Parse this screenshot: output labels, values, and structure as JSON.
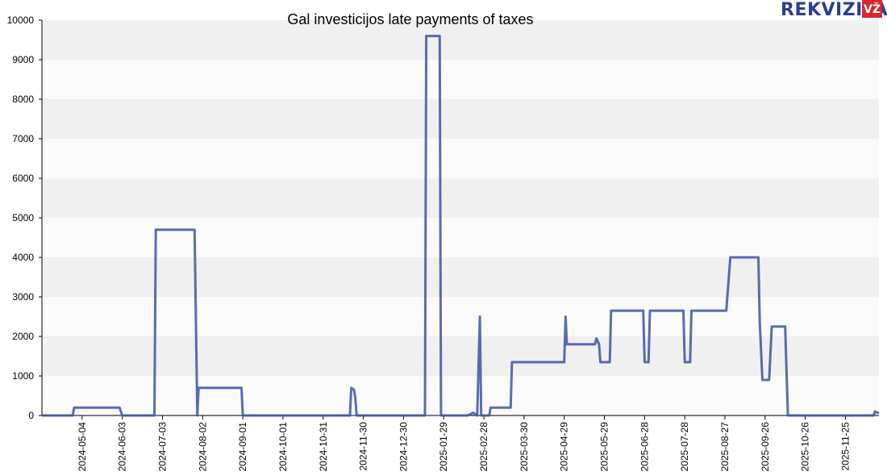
{
  "logo": {
    "word": "REKVIZITAI",
    "badge": "VŽ",
    "badge_color": "#d9262c",
    "word_color": "#2b3f8f"
  },
  "chart_data": {
    "type": "line",
    "title": "Gal investicijos late payments of taxes",
    "xlabel": "",
    "ylabel": "",
    "ylim": [
      0,
      10000
    ],
    "yticks": [
      0,
      1000,
      2000,
      3000,
      4000,
      5000,
      6000,
      7000,
      8000,
      9000,
      10000
    ],
    "xlim": [
      "2024-04-04",
      "2025-12-20"
    ],
    "xticks": [
      "2024-05-04",
      "2024-06-03",
      "2024-07-03",
      "2024-08-02",
      "2024-09-01",
      "2024-10-01",
      "2024-10-31",
      "2024-11-30",
      "2024-12-30",
      "2025-01-29",
      "2025-02-28",
      "2025-03-30",
      "2025-04-29",
      "2025-05-29",
      "2025-06-28",
      "2025-07-28",
      "2025-08-27",
      "2025-09-26",
      "2025-10-26",
      "2025-11-25"
    ],
    "grid": "horizontal bands",
    "line_color": "#3d52a1",
    "series": [
      {
        "x": [
          "2024-04-04",
          "2024-04-27",
          "2024-04-28",
          "2024-06-01",
          "2024-06-03",
          "2024-06-27",
          "2024-06-28",
          "2024-07-27",
          "2024-07-29",
          "2024-07-30",
          "2024-08-31",
          "2024-09-01",
          "2024-11-20",
          "2024-11-21",
          "2024-11-23",
          "2024-11-24",
          "2024-11-25",
          "2025-01-15",
          "2025-01-16",
          "2025-01-26",
          "2025-01-27",
          "2025-02-16",
          "2025-02-20",
          "2025-02-23",
          "2025-02-25",
          "2025-02-26",
          "2025-03-04",
          "2025-03-05",
          "2025-03-20",
          "2025-03-21",
          "2025-03-26",
          "2025-03-27",
          "2025-04-29",
          "2025-04-30",
          "2025-05-01",
          "2025-05-22",
          "2025-05-23",
          "2025-05-25",
          "2025-05-26",
          "2025-06-02",
          "2025-06-03",
          "2025-06-27",
          "2025-06-28",
          "2025-07-01",
          "2025-07-02",
          "2025-07-27",
          "2025-07-28",
          "2025-08-01",
          "2025-08-02",
          "2025-08-28",
          "2025-08-31",
          "2025-09-21",
          "2025-09-22",
          "2025-09-24",
          "2025-09-29",
          "2025-10-01",
          "2025-10-11",
          "2025-10-13",
          "2025-12-16",
          "2025-12-17",
          "2025-12-20"
        ],
        "y": [
          0,
          0,
          200,
          200,
          0,
          0,
          4700,
          4700,
          0,
          700,
          700,
          0,
          0,
          700,
          650,
          450,
          0,
          0,
          9600,
          9600,
          0,
          0,
          70,
          0,
          2500,
          0,
          0,
          200,
          200,
          1350,
          1350,
          1350,
          1350,
          2500,
          1800,
          1800,
          1950,
          1800,
          1350,
          1350,
          2650,
          2650,
          1350,
          1350,
          2650,
          2650,
          1350,
          1350,
          2650,
          2650,
          4000,
          4000,
          2350,
          900,
          900,
          2250,
          2250,
          0,
          0,
          100,
          60
        ]
      }
    ]
  }
}
